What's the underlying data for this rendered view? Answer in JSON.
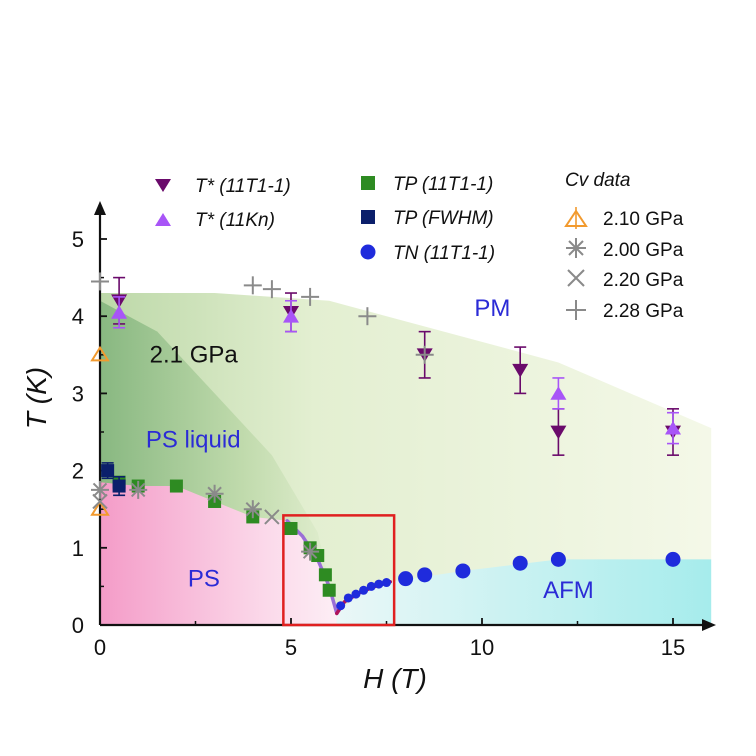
{
  "chart_data": {
    "type": "scatter",
    "title": "",
    "xlabel": "H (T)",
    "ylabel": "T (K)",
    "xlim": [
      0,
      16
    ],
    "ylim": [
      0,
      5.5
    ],
    "x_ticks": [
      0,
      5,
      10,
      15
    ],
    "y_ticks": [
      0,
      1,
      2,
      3,
      4,
      5
    ],
    "grid": false,
    "legend_position": "top",
    "series": [
      {
        "name": "T* (11T1-1)",
        "marker": "triangle-down",
        "color": "#6a0a6b",
        "points": [
          {
            "x": 0.5,
            "y": 4.2,
            "err": 0.3
          },
          {
            "x": 5.0,
            "y": 4.05,
            "err": 0.25
          },
          {
            "x": 8.5,
            "y": 3.5,
            "err": 0.3
          },
          {
            "x": 11.0,
            "y": 3.3,
            "err": 0.3
          },
          {
            "x": 12.0,
            "y": 2.5,
            "err": 0.3
          },
          {
            "x": 15.0,
            "y": 2.5,
            "err": 0.3
          }
        ]
      },
      {
        "name": "T* (11Kn)",
        "marker": "triangle-up",
        "color": "#a855f7",
        "points": [
          {
            "x": 0.5,
            "y": 4.05,
            "err": 0.2
          },
          {
            "x": 5.0,
            "y": 4.0,
            "err": 0.2
          },
          {
            "x": 12.0,
            "y": 3.0,
            "err": 0.2
          },
          {
            "x": 15.0,
            "y": 2.55,
            "err": 0.2
          }
        ]
      },
      {
        "name": "TP (11T1-1)",
        "marker": "square",
        "color": "#2e8b22",
        "points": [
          {
            "x": 0.5,
            "y": 1.85
          },
          {
            "x": 1.0,
            "y": 1.8
          },
          {
            "x": 2.0,
            "y": 1.8
          },
          {
            "x": 3.0,
            "y": 1.6
          },
          {
            "x": 4.0,
            "y": 1.4
          },
          {
            "x": 5.0,
            "y": 1.25
          },
          {
            "x": 5.5,
            "y": 1.0
          },
          {
            "x": 5.7,
            "y": 0.9
          },
          {
            "x": 5.9,
            "y": 0.65
          },
          {
            "x": 6.0,
            "y": 0.45
          }
        ]
      },
      {
        "name": "TP (FWHM)",
        "marker": "square",
        "color": "#0b1f6b",
        "points": [
          {
            "x": 0.2,
            "y": 2.0,
            "err": 0.1
          },
          {
            "x": 0.5,
            "y": 1.8,
            "err": 0.12
          }
        ]
      },
      {
        "name": "TN (11T1-1)",
        "marker": "circle",
        "color": "#1f2bdc",
        "points": [
          {
            "x": 8.0,
            "y": 0.6
          },
          {
            "x": 8.5,
            "y": 0.65
          },
          {
            "x": 9.5,
            "y": 0.7
          },
          {
            "x": 11.0,
            "y": 0.8
          },
          {
            "x": 12.0,
            "y": 0.85
          },
          {
            "x": 15.0,
            "y": 0.85
          }
        ]
      },
      {
        "name": "2.10 GPa",
        "marker": "triangle-up-open",
        "color": "#f29a2e",
        "points": [
          {
            "x": 0.0,
            "y": 3.5
          },
          {
            "x": 0.0,
            "y": 1.5
          }
        ]
      },
      {
        "name": "2.00 GPa",
        "marker": "asterisk",
        "color": "#8a8a8a",
        "points": [
          {
            "x": 0.0,
            "y": 1.75
          },
          {
            "x": 1.0,
            "y": 1.75
          },
          {
            "x": 3.0,
            "y": 1.7
          },
          {
            "x": 4.0,
            "y": 1.5
          },
          {
            "x": 5.5,
            "y": 0.95
          }
        ]
      },
      {
        "name": "2.20 GPa",
        "marker": "x",
        "color": "#8a8a8a",
        "points": [
          {
            "x": 0.0,
            "y": 1.6
          },
          {
            "x": 4.5,
            "y": 1.4
          }
        ]
      },
      {
        "name": "2.28 GPa",
        "marker": "plus",
        "color": "#8a8a8a",
        "points": [
          {
            "x": 0.0,
            "y": 4.45
          },
          {
            "x": 4.0,
            "y": 4.4
          },
          {
            "x": 4.5,
            "y": 4.35
          },
          {
            "x": 5.5,
            "y": 4.25
          },
          {
            "x": 7.0,
            "y": 4.0
          },
          {
            "x": 8.5,
            "y": 3.5
          }
        ]
      }
    ],
    "curves": [
      {
        "name": "TP boundary",
        "color": "#9a6fd6",
        "points": [
          [
            4.9,
            1.35
          ],
          [
            5.3,
            1.15
          ],
          [
            5.7,
            0.85
          ],
          [
            6.0,
            0.5
          ],
          [
            6.2,
            0.15
          ]
        ]
      },
      {
        "name": "TN boundary",
        "color": "#b0125a",
        "points": [
          [
            6.2,
            0.15
          ],
          [
            6.4,
            0.3
          ],
          [
            6.8,
            0.42
          ],
          [
            7.2,
            0.5
          ],
          [
            7.6,
            0.56
          ]
        ]
      },
      {
        "name": "TN points near QCP",
        "color": "#1f2bdc",
        "points": [
          [
            6.3,
            0.25
          ],
          [
            6.5,
            0.35
          ],
          [
            6.7,
            0.4
          ],
          [
            6.9,
            0.45
          ],
          [
            7.1,
            0.5
          ],
          [
            7.3,
            0.53
          ],
          [
            7.5,
            0.55
          ]
        ]
      }
    ],
    "annotations": [
      {
        "text": "PM",
        "x": 9.8,
        "y": 4.0,
        "color": "#2b2bd6"
      },
      {
        "text": "2.1 GPa",
        "x": 1.3,
        "y": 3.4,
        "color": "#111111"
      },
      {
        "text": "PS liquid",
        "x": 1.2,
        "y": 2.3,
        "color": "#2b2bd6"
      },
      {
        "text": "PS",
        "x": 2.3,
        "y": 0.5,
        "color": "#2b2bd6"
      },
      {
        "text": "AFM",
        "x": 11.6,
        "y": 0.35,
        "color": "#2b2bd6"
      }
    ],
    "highlight_box": {
      "x0": 4.8,
      "x1": 7.7,
      "y0": 0.0,
      "y1": 1.42,
      "color": "#e02020"
    },
    "legend": {
      "col1": [
        "T* (11T1-1)",
        "T* (11Kn)"
      ],
      "col2": [
        "TP (11T1-1)",
        "TP (FWHM)",
        "TN (11T1-1)"
      ],
      "col3_title": "Cv data",
      "col3": [
        "2.10 GPa",
        "2.00 GPa",
        "2.20 GPa",
        "2.28 GPa"
      ]
    }
  }
}
